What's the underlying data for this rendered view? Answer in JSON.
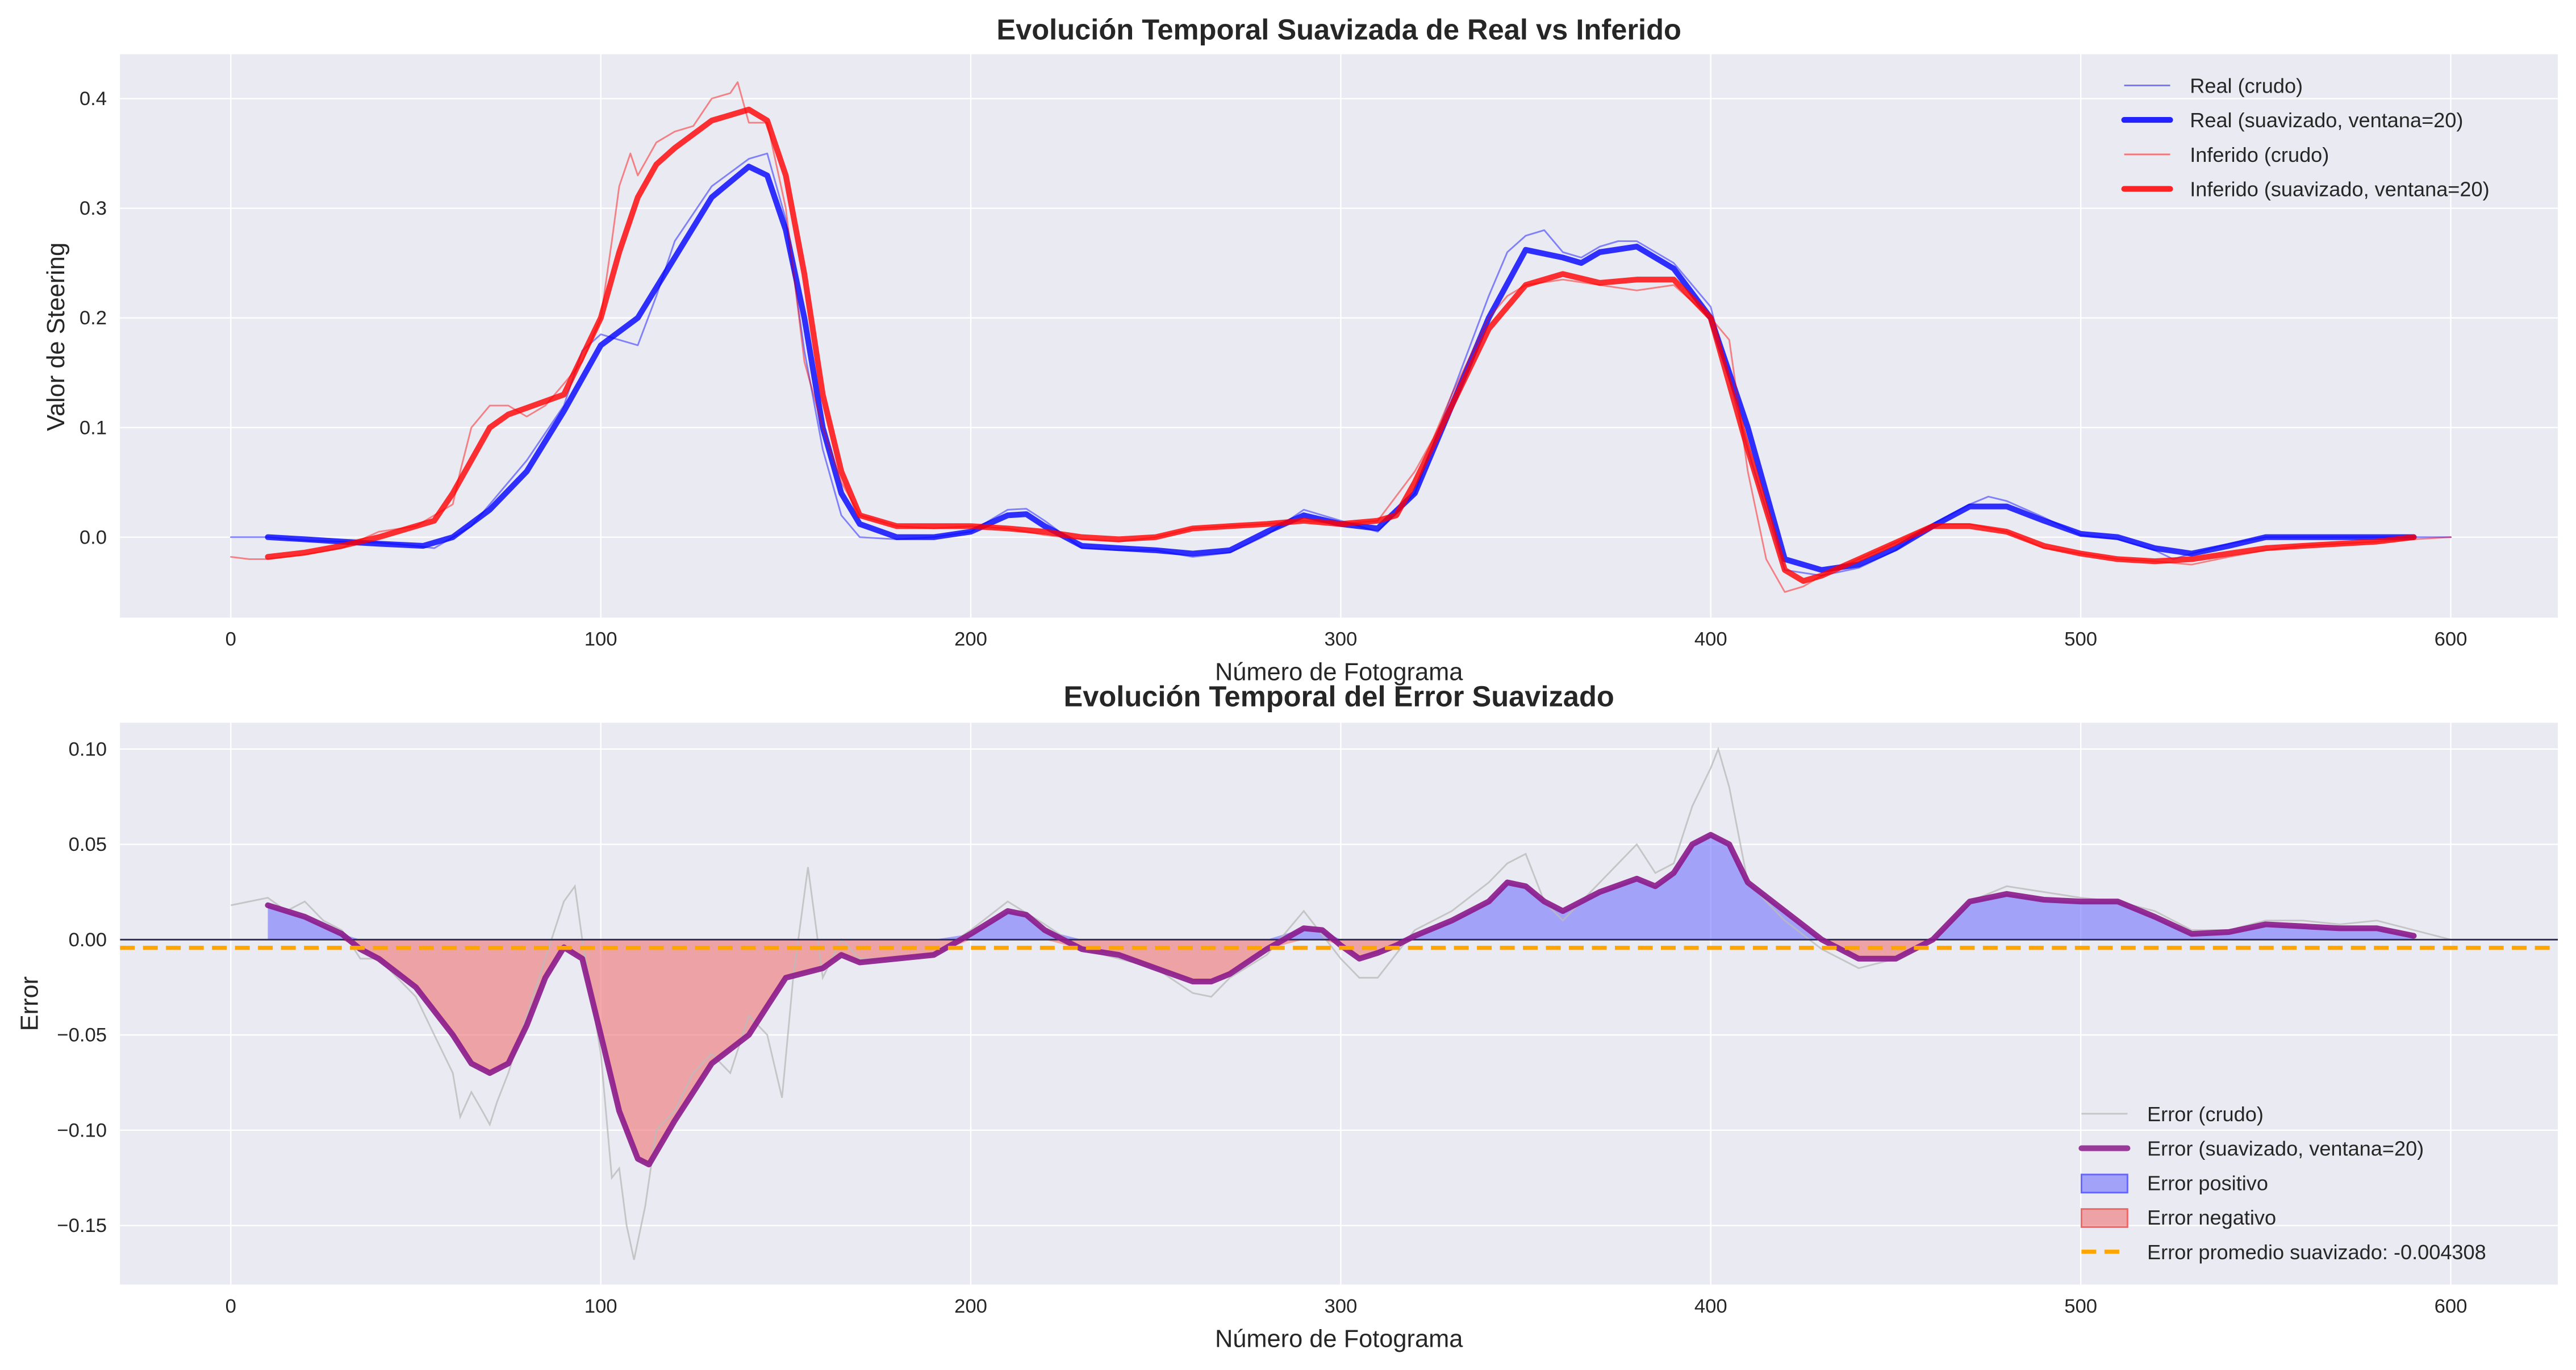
{
  "chart_data": [
    {
      "type": "line",
      "title": "Evolución Temporal Suavizada de Real vs Inferido",
      "xlabel": "Número de Fotograma",
      "ylabel": "Valor de Steering",
      "xlim": [
        -29.95,
        628.95
      ],
      "ylim": [
        -0.0734,
        0.4405
      ],
      "xticks": [
        "0",
        "100",
        "200",
        "300",
        "400",
        "500",
        "600"
      ],
      "yticks": [
        "0.0",
        "0.1",
        "0.2",
        "0.3",
        "0.4"
      ],
      "grid": true,
      "legend_position": "top-right",
      "series": [
        {
          "name": "Real (crudo)",
          "color": "#0000ff",
          "style": "thin-alpha",
          "x": [
            0,
            10,
            20,
            30,
            40,
            50,
            55,
            60,
            65,
            70,
            80,
            90,
            95,
            100,
            105,
            110,
            115,
            120,
            130,
            140,
            145,
            150,
            155,
            160,
            165,
            170,
            180,
            190,
            200,
            210,
            215,
            220,
            230,
            240,
            250,
            260,
            270,
            280,
            290,
            300,
            310,
            320,
            330,
            340,
            345,
            350,
            355,
            360,
            365,
            370,
            375,
            380,
            390,
            400,
            410,
            420,
            430,
            440,
            450,
            460,
            470,
            475,
            480,
            490,
            500,
            510,
            520,
            525,
            530,
            540,
            550,
            560,
            570,
            580,
            590,
            600
          ],
          "y": [
            0,
            0,
            -0.003,
            -0.004,
            -0.005,
            -0.008,
            -0.01,
            0.0,
            0.01,
            0.03,
            0.07,
            0.12,
            0.17,
            0.185,
            0.18,
            0.175,
            0.22,
            0.27,
            0.32,
            0.345,
            0.35,
            0.29,
            0.17,
            0.08,
            0.02,
            0.0,
            -0.002,
            0.0,
            0.005,
            0.025,
            0.026,
            0.015,
            -0.01,
            -0.012,
            -0.012,
            -0.018,
            -0.014,
            0.002,
            0.025,
            0.015,
            0.005,
            0.04,
            0.13,
            0.22,
            0.26,
            0.275,
            0.28,
            0.26,
            0.255,
            0.265,
            0.27,
            0.27,
            0.25,
            0.21,
            0.08,
            -0.03,
            -0.035,
            -0.028,
            -0.012,
            0.012,
            0.03,
            0.037,
            0.033,
            0.018,
            0.002,
            -0.002,
            -0.012,
            -0.02,
            -0.015,
            -0.006,
            0,
            0,
            0,
            0,
            0,
            0
          ]
        },
        {
          "name": "Real (suavizado, ventana=20)",
          "color": "#0000ff",
          "style": "thick",
          "x": [
            10,
            20,
            30,
            40,
            52,
            60,
            70,
            80,
            90,
            100,
            110,
            120,
            130,
            140,
            145,
            150,
            155,
            160,
            165,
            170,
            180,
            190,
            200,
            210,
            215,
            220,
            230,
            240,
            250,
            260,
            270,
            280,
            290,
            300,
            310,
            320,
            330,
            340,
            350,
            360,
            365,
            370,
            380,
            390,
            400,
            410,
            420,
            430,
            440,
            450,
            460,
            470,
            480,
            490,
            500,
            510,
            520,
            530,
            540,
            550,
            560,
            570,
            580,
            590
          ],
          "y": [
            0.0,
            -0.002,
            -0.004,
            -0.006,
            -0.008,
            0.0,
            0.025,
            0.06,
            0.115,
            0.175,
            0.2,
            0.255,
            0.31,
            0.338,
            0.33,
            0.28,
            0.2,
            0.1,
            0.04,
            0.012,
            0.0,
            0.0,
            0.005,
            0.02,
            0.021,
            0.01,
            -0.008,
            -0.01,
            -0.012,
            -0.015,
            -0.012,
            0.005,
            0.02,
            0.012,
            0.008,
            0.04,
            0.12,
            0.2,
            0.262,
            0.255,
            0.25,
            0.26,
            0.265,
            0.245,
            0.2,
            0.1,
            -0.02,
            -0.03,
            -0.025,
            -0.01,
            0.01,
            0.028,
            0.028,
            0.015,
            0.003,
            0.0,
            -0.01,
            -0.015,
            -0.008,
            0.0,
            0.0,
            0.0,
            0.0,
            0.0
          ]
        },
        {
          "name": "Inferido (crudo)",
          "color": "#ff0000",
          "style": "thin-alpha",
          "x": [
            0,
            5,
            10,
            20,
            30,
            40,
            50,
            55,
            60,
            62,
            65,
            70,
            75,
            80,
            85,
            90,
            95,
            100,
            103,
            105,
            108,
            110,
            115,
            120,
            125,
            130,
            135,
            137,
            140,
            145,
            150,
            155,
            160,
            165,
            170,
            180,
            190,
            200,
            210,
            220,
            230,
            240,
            250,
            260,
            270,
            280,
            290,
            300,
            310,
            320,
            325,
            330,
            340,
            345,
            350,
            360,
            370,
            380,
            390,
            400,
            405,
            410,
            415,
            420,
            425,
            430,
            440,
            450,
            460,
            470,
            480,
            490,
            500,
            510,
            520,
            530,
            540,
            550,
            560,
            570,
            580,
            590,
            600
          ],
          "y": [
            -0.018,
            -0.02,
            -0.02,
            -0.016,
            -0.01,
            0.005,
            0.01,
            0.02,
            0.03,
            0.06,
            0.1,
            0.12,
            0.12,
            0.11,
            0.12,
            0.14,
            0.16,
            0.2,
            0.27,
            0.32,
            0.35,
            0.33,
            0.36,
            0.37,
            0.375,
            0.4,
            0.405,
            0.415,
            0.378,
            0.378,
            0.3,
            0.16,
            0.1,
            0.05,
            0.02,
            0.01,
            0.008,
            0.01,
            0.008,
            0.002,
            -0.002,
            -0.004,
            0.0,
            0.008,
            0.01,
            0.012,
            0.015,
            0.012,
            0.015,
            0.06,
            0.09,
            0.13,
            0.2,
            0.22,
            0.23,
            0.235,
            0.23,
            0.225,
            0.23,
            0.2,
            0.18,
            0.06,
            -0.02,
            -0.05,
            -0.045,
            -0.035,
            -0.02,
            -0.005,
            0.012,
            0.012,
            0.005,
            -0.01,
            -0.015,
            -0.02,
            -0.022,
            -0.025,
            -0.018,
            -0.012,
            -0.008,
            -0.006,
            -0.004,
            -0.002,
            0.0
          ]
        },
        {
          "name": "Inferido (suavizado, ventana=20)",
          "color": "#ff0000",
          "style": "thick",
          "x": [
            10,
            20,
            30,
            40,
            50,
            55,
            60,
            70,
            75,
            80,
            90,
            100,
            105,
            110,
            115,
            120,
            130,
            140,
            145,
            150,
            155,
            160,
            165,
            170,
            180,
            190,
            200,
            210,
            220,
            230,
            240,
            250,
            260,
            270,
            280,
            290,
            300,
            310,
            315,
            320,
            330,
            340,
            350,
            360,
            370,
            380,
            390,
            400,
            410,
            420,
            425,
            430,
            440,
            450,
            460,
            470,
            480,
            490,
            500,
            510,
            520,
            530,
            540,
            550,
            560,
            570,
            580,
            590
          ],
          "y": [
            -0.018,
            -0.014,
            -0.008,
            0.0,
            0.01,
            0.015,
            0.04,
            0.1,
            0.112,
            0.118,
            0.13,
            0.2,
            0.26,
            0.31,
            0.34,
            0.355,
            0.38,
            0.39,
            0.38,
            0.33,
            0.24,
            0.13,
            0.06,
            0.02,
            0.01,
            0.01,
            0.01,
            0.008,
            0.005,
            0.0,
            -0.002,
            0.0,
            0.008,
            0.01,
            0.012,
            0.015,
            0.012,
            0.015,
            0.02,
            0.05,
            0.12,
            0.19,
            0.23,
            0.24,
            0.232,
            0.235,
            0.235,
            0.2,
            0.08,
            -0.03,
            -0.04,
            -0.035,
            -0.02,
            -0.005,
            0.01,
            0.01,
            0.005,
            -0.008,
            -0.015,
            -0.02,
            -0.022,
            -0.02,
            -0.015,
            -0.01,
            -0.008,
            -0.006,
            -0.004,
            0.0
          ]
        }
      ]
    },
    {
      "type": "line",
      "title": "Evolución Temporal del Error Suavizado",
      "xlabel": "Número de Fotograma",
      "ylabel": "Error",
      "xlim": [
        -29.95,
        628.95
      ],
      "ylim": [
        -0.181,
        0.1138
      ],
      "xticks": [
        "0",
        "100",
        "200",
        "300",
        "400",
        "500",
        "600"
      ],
      "yticks": [
        "0.10",
        "0.05",
        "0.00",
        "−0.05",
        "−0.10",
        "−0.15"
      ],
      "grid": true,
      "legend_position": "bottom-right",
      "zero_line_color": "#2c2c54",
      "series": [
        {
          "name": "Error (crudo)",
          "color": "#bbbbbb",
          "style": "thin",
          "x": [
            0,
            5,
            10,
            15,
            20,
            25,
            30,
            35,
            40,
            45,
            50,
            55,
            60,
            62,
            65,
            68,
            70,
            72,
            75,
            80,
            85,
            90,
            93,
            95,
            100,
            103,
            105,
            107,
            109,
            112,
            115,
            120,
            125,
            130,
            135,
            140,
            145,
            149,
            152,
            156,
            160,
            165,
            170,
            180,
            190,
            200,
            210,
            220,
            230,
            240,
            250,
            260,
            265,
            270,
            280,
            290,
            300,
            305,
            310,
            320,
            330,
            340,
            345,
            350,
            355,
            360,
            370,
            380,
            385,
            390,
            395,
            400,
            402,
            405,
            410,
            420,
            430,
            440,
            450,
            460,
            470,
            480,
            490,
            500,
            510,
            520,
            530,
            540,
            550,
            560,
            570,
            580,
            590,
            600
          ],
          "y": [
            0.018,
            0.02,
            0.022,
            0.015,
            0.02,
            0.01,
            0.005,
            -0.01,
            -0.01,
            -0.02,
            -0.03,
            -0.05,
            -0.07,
            -0.093,
            -0.08,
            -0.09,
            -0.097,
            -0.085,
            -0.07,
            -0.04,
            -0.01,
            0.02,
            0.028,
            0.0,
            -0.06,
            -0.125,
            -0.12,
            -0.15,
            -0.168,
            -0.14,
            -0.1,
            -0.09,
            -0.07,
            -0.06,
            -0.07,
            -0.04,
            -0.05,
            -0.083,
            -0.02,
            0.038,
            -0.02,
            0.0,
            -0.01,
            -0.01,
            -0.008,
            0.005,
            0.02,
            0.008,
            -0.005,
            -0.01,
            -0.015,
            -0.028,
            -0.03,
            -0.02,
            -0.008,
            0.015,
            -0.01,
            -0.02,
            -0.02,
            0.005,
            0.015,
            0.03,
            0.04,
            0.045,
            0.02,
            0.01,
            0.03,
            0.05,
            0.035,
            0.04,
            0.07,
            0.09,
            0.1,
            0.08,
            0.03,
            0.01,
            -0.005,
            -0.015,
            -0.01,
            0.0,
            0.02,
            0.028,
            0.025,
            0.022,
            0.02,
            0.015,
            0.005,
            0.005,
            0.01,
            0.01,
            0.008,
            0.01,
            0.005,
            0.0
          ]
        },
        {
          "name": "Error (suavizado, ventana=20)",
          "color": "#8b1a8b",
          "style": "thick",
          "x": [
            10,
            20,
            30,
            35,
            40,
            50,
            60,
            65,
            70,
            75,
            80,
            85,
            90,
            95,
            100,
            105,
            110,
            113,
            120,
            125,
            130,
            140,
            145,
            150,
            160,
            165,
            170,
            180,
            190,
            200,
            210,
            215,
            220,
            230,
            240,
            250,
            260,
            265,
            270,
            280,
            290,
            295,
            300,
            305,
            310,
            315,
            320,
            330,
            340,
            345,
            350,
            355,
            360,
            370,
            380,
            385,
            390,
            395,
            400,
            405,
            410,
            420,
            430,
            440,
            450,
            460,
            470,
            480,
            490,
            500,
            510,
            520,
            530,
            540,
            550,
            560,
            570,
            580,
            590
          ],
          "y": [
            0.018,
            0.012,
            0.003,
            -0.005,
            -0.01,
            -0.025,
            -0.05,
            -0.065,
            -0.07,
            -0.065,
            -0.045,
            -0.02,
            -0.004,
            -0.01,
            -0.05,
            -0.09,
            -0.115,
            -0.118,
            -0.095,
            -0.08,
            -0.065,
            -0.05,
            -0.035,
            -0.02,
            -0.015,
            -0.008,
            -0.012,
            -0.01,
            -0.008,
            0.003,
            0.015,
            0.013,
            0.005,
            -0.005,
            -0.008,
            -0.015,
            -0.022,
            -0.022,
            -0.018,
            -0.005,
            0.006,
            0.005,
            -0.003,
            -0.01,
            -0.007,
            -0.003,
            0.002,
            0.01,
            0.02,
            0.03,
            0.028,
            0.02,
            0.015,
            0.025,
            0.032,
            0.028,
            0.035,
            0.05,
            0.055,
            0.05,
            0.03,
            0.015,
            0.0,
            -0.01,
            -0.01,
            0.0,
            0.02,
            0.024,
            0.021,
            0.02,
            0.02,
            0.012,
            0.003,
            0.004,
            0.008,
            0.007,
            0.006,
            0.006,
            0.002
          ]
        },
        {
          "name": "Error positivo",
          "color": "#6666ff",
          "style": "fill-above-zero"
        },
        {
          "name": "Error negativo",
          "color": "#ee6666",
          "style": "fill-below-zero"
        },
        {
          "name": "Error promedio suavizado: -0.004308",
          "color": "#ffa500",
          "style": "dashed-hline",
          "value": -0.004308
        }
      ]
    }
  ]
}
